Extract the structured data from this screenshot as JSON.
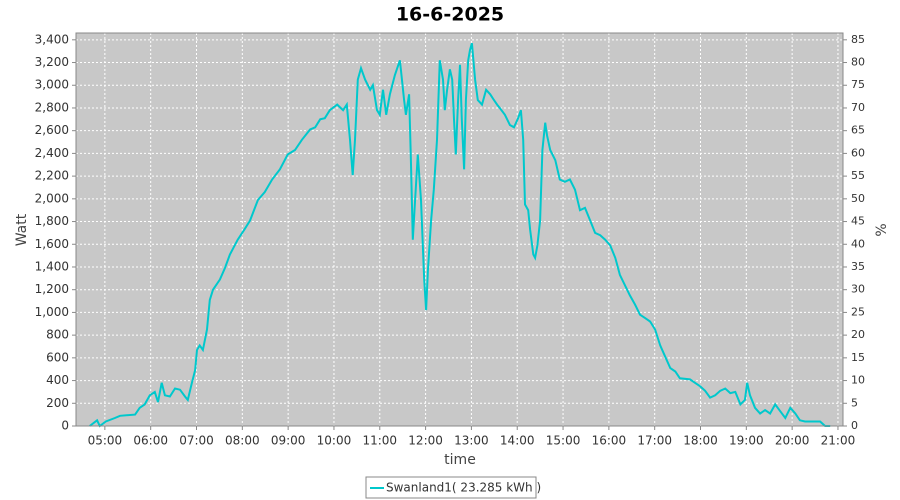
{
  "chart_data": {
    "type": "line",
    "title": "16-6-2025",
    "x_label": "time",
    "y_label": "Watt",
    "y2_label": "%",
    "x": [
      4.67,
      4.83,
      4.89,
      5.02,
      5.22,
      5.33,
      5.66,
      5.76,
      5.87,
      5.98,
      6.09,
      6.16,
      6.24,
      6.31,
      6.42,
      6.53,
      6.64,
      6.75,
      6.81,
      6.9,
      6.97,
      7.01,
      7.07,
      7.14,
      7.23,
      7.29,
      7.36,
      7.51,
      7.62,
      7.73,
      7.9,
      8.06,
      8.17,
      8.34,
      8.49,
      8.65,
      8.82,
      8.99,
      9.15,
      9.3,
      9.48,
      9.59,
      9.7,
      9.8,
      9.91,
      10.07,
      10.2,
      10.28,
      10.35,
      10.41,
      10.46,
      10.52,
      10.59,
      10.68,
      10.79,
      10.85,
      10.94,
      11.0,
      11.07,
      11.14,
      11.22,
      11.33,
      11.44,
      11.53,
      11.57,
      11.64,
      11.68,
      11.72,
      11.77,
      11.83,
      11.9,
      11.97,
      12.01,
      12.05,
      12.12,
      12.18,
      12.25,
      12.31,
      12.38,
      12.42,
      12.47,
      12.53,
      12.58,
      12.62,
      12.66,
      12.71,
      12.75,
      12.79,
      12.84,
      12.88,
      12.93,
      12.97,
      13.01,
      13.08,
      13.14,
      13.23,
      13.32,
      13.41,
      13.49,
      13.56,
      13.62,
      13.73,
      13.84,
      13.93,
      14.02,
      14.08,
      14.13,
      14.17,
      14.24,
      14.28,
      14.35,
      14.39,
      14.44,
      14.5,
      14.55,
      14.61,
      14.65,
      14.72,
      14.83,
      14.93,
      15.04,
      15.15,
      15.26,
      15.37,
      15.48,
      15.59,
      15.7,
      15.81,
      15.92,
      16.03,
      16.14,
      16.24,
      16.35,
      16.46,
      16.57,
      16.68,
      16.79,
      16.9,
      17.01,
      17.12,
      17.23,
      17.34,
      17.45,
      17.55,
      17.77,
      17.88,
      17.99,
      18.1,
      18.21,
      18.32,
      18.43,
      18.54,
      18.65,
      18.76,
      18.87,
      18.97,
      19.02,
      19.08,
      19.19,
      19.3,
      19.41,
      19.52,
      19.63,
      19.74,
      19.85,
      19.96,
      20.07,
      20.17,
      20.28,
      20.5,
      20.61,
      20.72,
      20.83
    ],
    "series": [
      {
        "name": "Swanland1( 23.285 kWh )",
        "color": "#00c8cc",
        "values": [
          0,
          50,
          0,
          40,
          70,
          90,
          100,
          160,
          190,
          270,
          300,
          210,
          380,
          270,
          260,
          330,
          320,
          260,
          230,
          380,
          490,
          670,
          710,
          670,
          850,
          1110,
          1200,
          1290,
          1390,
          1510,
          1640,
          1740,
          1810,
          1990,
          2060,
          2170,
          2260,
          2390,
          2430,
          2520,
          2610,
          2630,
          2700,
          2710,
          2780,
          2830,
          2780,
          2830,
          2520,
          2210,
          2520,
          3050,
          3150,
          3050,
          2960,
          3000,
          2780,
          2740,
          2960,
          2740,
          2920,
          3090,
          3220,
          2870,
          2740,
          2920,
          2340,
          1640,
          1990,
          2390,
          1990,
          1290,
          1020,
          1370,
          1810,
          2080,
          2520,
          3220,
          3050,
          2780,
          2960,
          3140,
          3050,
          2700,
          2390,
          2870,
          3180,
          2700,
          2260,
          2870,
          3220,
          3310,
          3370,
          3050,
          2870,
          2830,
          2960,
          2920,
          2870,
          2830,
          2800,
          2740,
          2650,
          2630,
          2710,
          2780,
          2520,
          1950,
          1900,
          1730,
          1510,
          1480,
          1590,
          1810,
          2430,
          2670,
          2560,
          2430,
          2340,
          2170,
          2150,
          2170,
          2080,
          1900,
          1920,
          1810,
          1700,
          1680,
          1640,
          1590,
          1480,
          1330,
          1240,
          1150,
          1070,
          980,
          950,
          920,
          850,
          710,
          610,
          510,
          480,
          420,
          410,
          380,
          350,
          310,
          250,
          270,
          310,
          330,
          290,
          300,
          190,
          230,
          380,
          270,
          160,
          110,
          140,
          110,
          190,
          130,
          70,
          160,
          110,
          50,
          40,
          40,
          40,
          0,
          0
        ]
      }
    ],
    "xlim": [
      4.37,
      21.11
    ],
    "xticks": [
      {
        "value": 5,
        "label": "05:00"
      },
      {
        "value": 6,
        "label": "06:00"
      },
      {
        "value": 7,
        "label": "07:00"
      },
      {
        "value": 8,
        "label": "08:00"
      },
      {
        "value": 9,
        "label": "09:00"
      },
      {
        "value": 10,
        "label": "10:00"
      },
      {
        "value": 11,
        "label": "11:00"
      },
      {
        "value": 12,
        "label": "12:00"
      },
      {
        "value": 13,
        "label": "13:00"
      },
      {
        "value": 14,
        "label": "14:00"
      },
      {
        "value": 15,
        "label": "15:00"
      },
      {
        "value": 16,
        "label": "16:00"
      },
      {
        "value": 17,
        "label": "17:00"
      },
      {
        "value": 18,
        "label": "18:00"
      },
      {
        "value": 19,
        "label": "19:00"
      },
      {
        "value": 20,
        "label": "20:00"
      },
      {
        "value": 21,
        "label": "21:00"
      }
    ],
    "ylim": [
      0,
      3460
    ],
    "yticks": [
      0,
      200,
      400,
      600,
      800,
      {
        "value": 1000,
        "label": "1,000"
      },
      {
        "value": 1200,
        "label": "1,200"
      },
      {
        "value": 1400,
        "label": "1,400"
      },
      {
        "value": 1600,
        "label": "1,600"
      },
      {
        "value": 1800,
        "label": "1,800"
      },
      {
        "value": 2000,
        "label": "2,000"
      },
      {
        "value": 2200,
        "label": "2,200"
      },
      {
        "value": 2400,
        "label": "2,400"
      },
      {
        "value": 2600,
        "label": "2,600"
      },
      {
        "value": 2800,
        "label": "2,800"
      },
      {
        "value": 3000,
        "label": "3,000"
      },
      {
        "value": 3200,
        "label": "3,200"
      },
      {
        "value": 3400,
        "label": "3,400"
      }
    ],
    "y2lim": [
      0,
      86.5
    ],
    "y2ticks": [
      0,
      5,
      10,
      15,
      20,
      25,
      30,
      35,
      40,
      45,
      50,
      55,
      60,
      65,
      70,
      75,
      80,
      85
    ],
    "grid": true
  }
}
